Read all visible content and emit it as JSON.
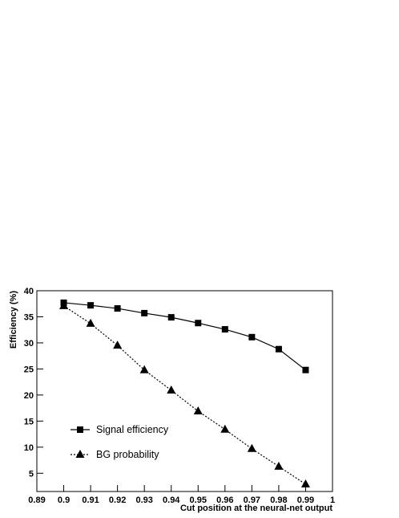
{
  "chart_data": {
    "type": "line",
    "x_label": "Cut position at the neural-net output",
    "y_label": "Efficiency (%)",
    "x": [
      0.9,
      0.91,
      0.92,
      0.93,
      0.94,
      0.95,
      0.96,
      0.97,
      0.98,
      0.99
    ],
    "series": [
      {
        "name": "Signal efficiency",
        "color": "#000000",
        "marker": "square",
        "dash": "solid",
        "values": [
          37.7,
          37.2,
          36.6,
          35.7,
          34.9,
          33.8,
          32.6,
          31.1,
          28.8,
          24.8
        ]
      },
      {
        "name": "BG probability",
        "color": "#000000",
        "marker": "triangle",
        "dash": "dotted",
        "values": [
          37.1,
          33.7,
          29.5,
          24.8,
          20.9,
          16.9,
          13.4,
          9.7,
          6.3,
          2.9
        ]
      }
    ],
    "xlim": [
      0.89,
      1
    ],
    "xticks": [
      0.89,
      0.9,
      0.91,
      0.92,
      0.93,
      0.94,
      0.95,
      0.96,
      0.97,
      0.98,
      0.99,
      1
    ],
    "ylim": [
      1.5,
      40
    ],
    "yticks": [
      5,
      10,
      15,
      20,
      25,
      30,
      35,
      40
    ],
    "legend": "lower-left",
    "grid": false
  }
}
